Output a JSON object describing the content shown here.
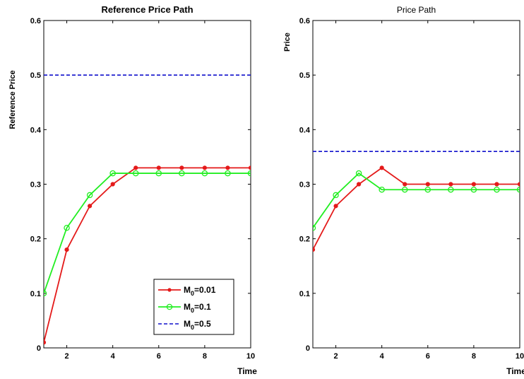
{
  "chart_data": [
    {
      "type": "line",
      "title": "Reference Price Path",
      "xlabel": "Time",
      "ylabel": "Reference Price",
      "xlim": [
        1,
        10
      ],
      "ylim": [
        0,
        0.6
      ],
      "xticks": [
        2,
        4,
        6,
        8,
        10
      ],
      "yticks": [
        0,
        0.1,
        0.2,
        0.3,
        0.4,
        0.5,
        0.6
      ],
      "grid": false,
      "legend": {
        "placement": "bottom-right"
      },
      "x": [
        1,
        2,
        3,
        4,
        5,
        6,
        7,
        8,
        9,
        10
      ],
      "series": [
        {
          "name_base": "M",
          "name_sub": "0",
          "name_suffix": "=0.01",
          "color": "#e41a1a",
          "marker": "dot",
          "style": "solid",
          "values": [
            0.01,
            0.18,
            0.26,
            0.3,
            0.33,
            0.33,
            0.33,
            0.33,
            0.33,
            0.33
          ]
        },
        {
          "name_base": "M",
          "name_sub": "0",
          "name_suffix": "=0.1",
          "color": "#22ee22",
          "marker": "circle",
          "style": "solid",
          "values": [
            0.1,
            0.22,
            0.28,
            0.32,
            0.32,
            0.32,
            0.32,
            0.32,
            0.32,
            0.32
          ]
        },
        {
          "name_base": "M",
          "name_sub": "0",
          "name_suffix": "=0.5",
          "color": "#1010cc",
          "marker": "none",
          "style": "dashed",
          "values": [
            0.5,
            0.5,
            0.5,
            0.5,
            0.5,
            0.5,
            0.5,
            0.5,
            0.5,
            0.5
          ]
        }
      ]
    },
    {
      "type": "line",
      "title": "Price Path",
      "xlabel": "Time",
      "ylabel": "Price",
      "xlim": [
        1,
        10
      ],
      "ylim": [
        0,
        0.6
      ],
      "xticks": [
        2,
        4,
        6,
        8,
        10
      ],
      "yticks": [
        0,
        0.1,
        0.2,
        0.3,
        0.4,
        0.5,
        0.6
      ],
      "grid": false,
      "x": [
        1,
        2,
        3,
        4,
        5,
        6,
        7,
        8,
        9,
        10
      ],
      "series": [
        {
          "color": "#e41a1a",
          "marker": "dot",
          "style": "solid",
          "values": [
            0.18,
            0.26,
            0.3,
            0.33,
            0.3,
            0.3,
            0.3,
            0.3,
            0.3,
            0.3
          ]
        },
        {
          "color": "#22ee22",
          "marker": "circle",
          "style": "solid",
          "values": [
            0.22,
            0.28,
            0.32,
            0.29,
            0.29,
            0.29,
            0.29,
            0.29,
            0.29,
            0.29
          ]
        },
        {
          "color": "#1010cc",
          "marker": "none",
          "style": "dashed",
          "values": [
            0.36,
            0.36,
            0.36,
            0.36,
            0.36,
            0.36,
            0.36,
            0.36,
            0.36,
            0.36
          ]
        }
      ]
    }
  ]
}
